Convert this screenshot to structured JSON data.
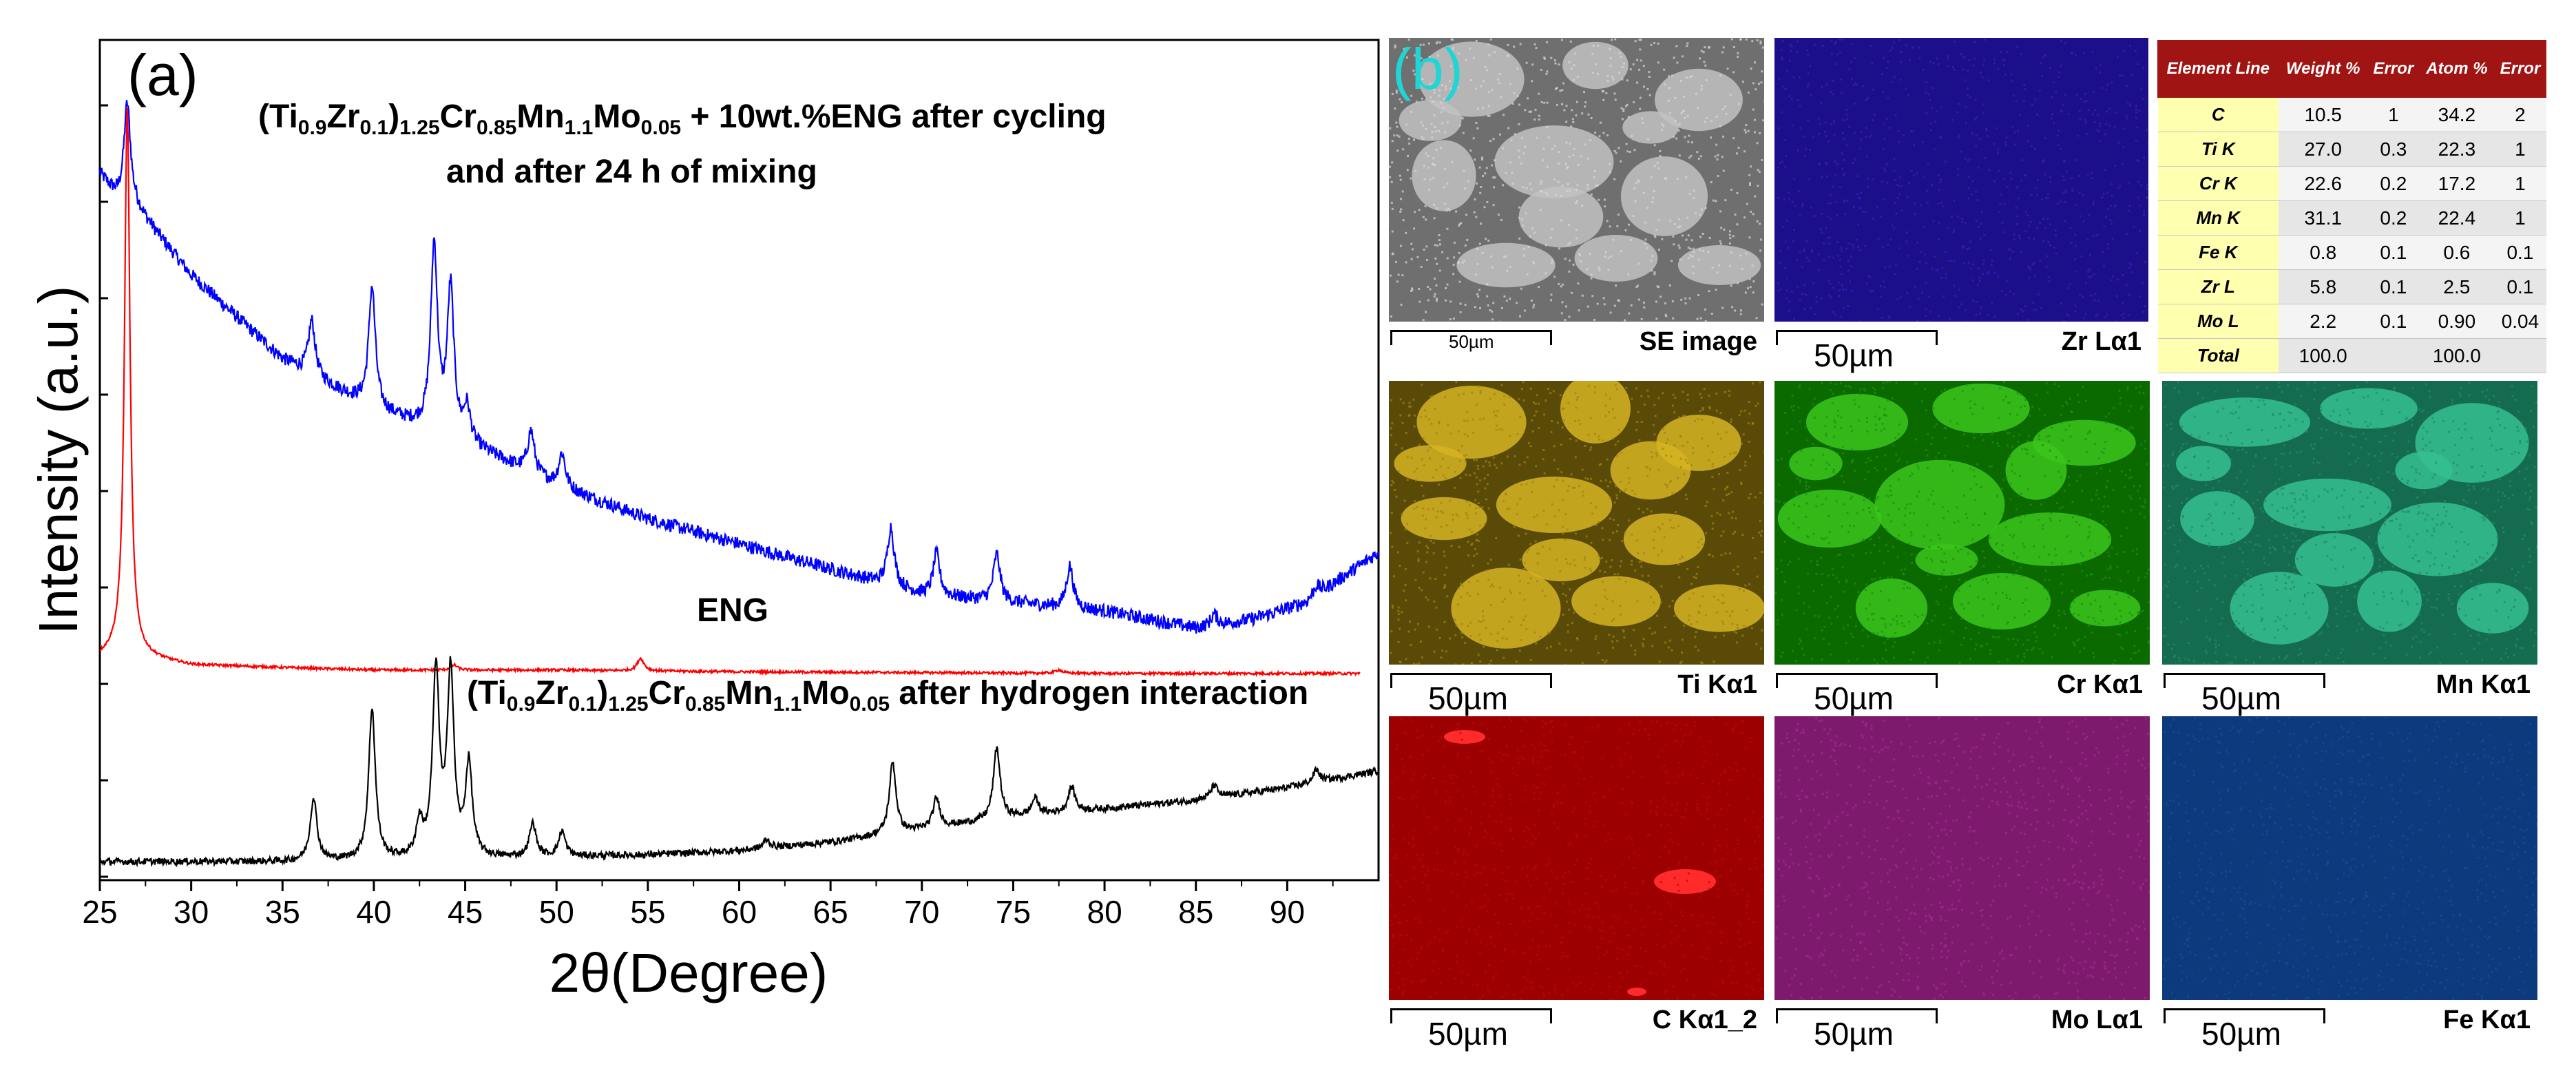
{
  "panel_a": {
    "label": "(a)",
    "chart_data": {
      "type": "line",
      "xlabel": "2θ(Degree)",
      "ylabel": "Intensity (a.u.)",
      "xlim": [
        25,
        95
      ],
      "x_ticks": [
        25,
        30,
        35,
        40,
        45,
        50,
        55,
        60,
        65,
        70,
        75,
        80,
        85,
        90
      ],
      "series": [
        {
          "name": "(Ti0.9Zr0.1)1.25Cr0.85Mn1.1Mo0.05 + 10wt.%ENG after cycling and after 24 h of mixing",
          "color": "#0000ff",
          "x_range": [
            25,
            95
          ],
          "background": [
            [
              25,
              0.84
            ],
            [
              26,
              0.81
            ],
            [
              27,
              0.8
            ],
            [
              30,
              0.72
            ],
            [
              35,
              0.62
            ],
            [
              40,
              0.56
            ],
            [
              45,
              0.52
            ],
            [
              50,
              0.47
            ],
            [
              55,
              0.43
            ],
            [
              60,
              0.4
            ],
            [
              65,
              0.37
            ],
            [
              70,
              0.34
            ],
            [
              75,
              0.33
            ],
            [
              80,
              0.32
            ],
            [
              85,
              0.3
            ],
            [
              88,
              0.31
            ],
            [
              91,
              0.33
            ],
            [
              95,
              0.39
            ]
          ],
          "peaks": [
            [
              26.5,
              0.12
            ],
            [
              36.6,
              0.065
            ],
            [
              39.9,
              0.145
            ],
            [
              43.3,
              0.22
            ],
            [
              44.2,
              0.175
            ],
            [
              45.1,
              0.04
            ],
            [
              48.6,
              0.05
            ],
            [
              50.3,
              0.04
            ],
            [
              68.3,
              0.07
            ],
            [
              70.8,
              0.05
            ],
            [
              74.1,
              0.056
            ],
            [
              78.1,
              0.05
            ],
            [
              86.0,
              0.013
            ],
            [
              91.6,
              0.012
            ]
          ]
        },
        {
          "name": "ENG",
          "color": "#ff0000",
          "x_range": [
            25,
            94
          ],
          "background": [
            [
              25,
              0.265
            ],
            [
              26,
              0.27
            ],
            [
              30,
              0.256
            ],
            [
              40,
              0.25
            ],
            [
              50,
              0.25
            ],
            [
              60,
              0.248
            ],
            [
              70,
              0.247
            ],
            [
              80,
              0.246
            ],
            [
              94,
              0.246
            ]
          ],
          "peaks": [
            [
              26.5,
              0.65
            ],
            [
              44.4,
              0.006
            ],
            [
              54.6,
              0.015
            ],
            [
              77.5,
              0.004
            ]
          ]
        },
        {
          "name": "(Ti0.9Zr0.1)1.25Cr0.85Mn1.1Mo0.05 after hydrogen interaction",
          "color": "#000000",
          "x_range": [
            25,
            95
          ],
          "background": [
            [
              25,
              0.022
            ],
            [
              35,
              0.022
            ],
            [
              45,
              0.025
            ],
            [
              55,
              0.03
            ],
            [
              60,
              0.035
            ],
            [
              65,
              0.045
            ],
            [
              70,
              0.06
            ],
            [
              75,
              0.075
            ],
            [
              80,
              0.085
            ],
            [
              85,
              0.095
            ],
            [
              90,
              0.11
            ],
            [
              95,
              0.13
            ]
          ],
          "peaks": [
            [
              36.7,
              0.075
            ],
            [
              39.9,
              0.18
            ],
            [
              42.5,
              0.04
            ],
            [
              43.4,
              0.22
            ],
            [
              44.2,
              0.22
            ],
            [
              45.2,
              0.11
            ],
            [
              48.7,
              0.04
            ],
            [
              50.3,
              0.03
            ],
            [
              61.5,
              0.01
            ],
            [
              68.4,
              0.085
            ],
            [
              70.8,
              0.035
            ],
            [
              74.1,
              0.085
            ],
            [
              76.2,
              0.02
            ],
            [
              78.2,
              0.03
            ],
            [
              86.0,
              0.015
            ],
            [
              91.6,
              0.015
            ]
          ]
        }
      ],
      "annotations": [
        {
          "text": "(Ti0.9Zr0.1)1.25Cr0.85Mn1.1Mo0.05 + 10wt.%ENG  after cycling"
        },
        {
          "text": "and after 24 h of mixing"
        },
        {
          "text": "ENG"
        },
        {
          "text": "(Ti0.9Zr0.1)1.25Cr0.85Mn1.1Mo0.05 after hydrogen interaction"
        }
      ],
      "grid": false
    }
  },
  "panel_b": {
    "label": "(b)",
    "maps": [
      {
        "id": "se",
        "label": "SE image",
        "scale": "50µm",
        "base": "#6f6f6f",
        "dots": "#d8d8d8",
        "particles": "#c2c2c2"
      },
      {
        "id": "zr",
        "label": "Zr Lα1",
        "scale": "50µm",
        "base": "#1c0f8a",
        "dots": "#3422b8",
        "particles": ""
      },
      {
        "id": "ti",
        "label": "Ti Kα1",
        "scale": "50µm",
        "base": "#5a4a08",
        "dots": "#9c8410",
        "particles": "#d6b422"
      },
      {
        "id": "cr",
        "label": "Cr Kα1",
        "scale": "50µm",
        "base": "#0a6a00",
        "dots": "#1e8e10",
        "particles": "#3cc51c"
      },
      {
        "id": "mn",
        "label": "Mn Kα1",
        "scale": "50µm",
        "base": "#156b50",
        "dots": "#228a68",
        "particles": "#35c090"
      },
      {
        "id": "c",
        "label": "C Kα1_2",
        "scale": "50µm",
        "base": "#9c0000",
        "dots": "#b80a0a",
        "particles": "#ff2a2a"
      },
      {
        "id": "mo",
        "label": "Mo Lα1",
        "scale": "50µm",
        "base": "#7e1a6e",
        "dots": "#a02c92",
        "particles": ""
      },
      {
        "id": "fe",
        "label": "Fe Kα1",
        "scale": "50µm",
        "base": "#0c3a7c",
        "dots": "#1a4c9a",
        "particles": ""
      }
    ],
    "table": {
      "headers": [
        "Element Line",
        "Weight %",
        "Error",
        "Atom %",
        "Error"
      ],
      "rows": [
        [
          "C",
          "10.5",
          "1",
          "34.2",
          "2"
        ],
        [
          "Ti K",
          "27.0",
          "0.3",
          "22.3",
          "1"
        ],
        [
          "Cr K",
          "22.6",
          "0.2",
          "17.2",
          "1"
        ],
        [
          "Mn K",
          "31.1",
          "0.2",
          "22.4",
          "1"
        ],
        [
          "Fe K",
          "0.8",
          "0.1",
          "0.6",
          "0.1"
        ],
        [
          "Zr L",
          "5.8",
          "0.1",
          "2.5",
          "0.1"
        ],
        [
          "Mo L",
          "2.2",
          "0.1",
          "0.90",
          "0.04"
        ],
        [
          "Total",
          "100.0",
          "",
          "100.0",
          ""
        ]
      ]
    }
  }
}
